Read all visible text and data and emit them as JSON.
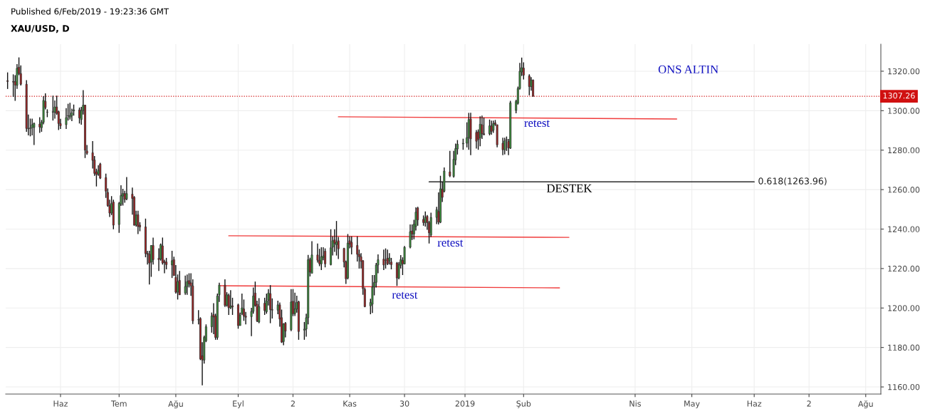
{
  "chart_data": {
    "type": "candlestick",
    "title": "XAU/USD, D",
    "subtitle": "ONS ALTIN",
    "x": [
      "2018-05-04",
      "2018-05-07",
      "2018-05-08",
      "2018-05-09",
      "2018-05-10",
      "2018-05-11",
      "2018-05-14",
      "2018-05-15",
      "2018-05-16",
      "2018-05-17",
      "2018-05-18",
      "2018-05-21",
      "2018-05-22",
      "2018-05-23",
      "2018-05-24",
      "2018-05-25",
      "2018-05-28",
      "2018-05-29",
      "2018-05-30",
      "2018-05-31",
      "2018-06-01",
      "2018-06-04",
      "2018-06-05",
      "2018-06-06",
      "2018-06-07",
      "2018-06-08",
      "2018-06-11",
      "2018-06-12",
      "2018-06-13",
      "2018-06-14",
      "2018-06-15",
      "2018-06-18",
      "2018-06-19",
      "2018-06-20",
      "2018-06-21",
      "2018-06-22",
      "2018-06-25",
      "2018-06-26",
      "2018-06-27",
      "2018-06-28",
      "2018-06-29",
      "2018-07-02",
      "2018-07-03",
      "2018-07-04",
      "2018-07-05",
      "2018-07-06",
      "2018-07-09",
      "2018-07-10",
      "2018-07-11",
      "2018-07-12",
      "2018-07-13",
      "2018-07-16",
      "2018-07-17",
      "2018-07-18",
      "2018-07-19",
      "2018-07-20",
      "2018-07-23",
      "2018-07-24",
      "2018-07-25",
      "2018-07-26",
      "2018-07-27",
      "2018-07-30",
      "2018-07-31",
      "2018-08-01",
      "2018-08-02",
      "2018-08-03",
      "2018-08-06",
      "2018-08-07",
      "2018-08-08",
      "2018-08-09",
      "2018-08-10",
      "2018-08-13",
      "2018-08-14",
      "2018-08-15",
      "2018-08-16",
      "2018-08-17",
      "2018-08-20",
      "2018-08-21",
      "2018-08-22",
      "2018-08-23",
      "2018-08-24",
      "2018-08-27",
      "2018-08-28",
      "2018-08-29",
      "2018-08-30",
      "2018-08-31",
      "2018-09-03",
      "2018-09-04",
      "2018-09-05",
      "2018-09-06",
      "2018-09-07",
      "2018-09-10",
      "2018-09-11",
      "2018-09-12",
      "2018-09-13",
      "2018-09-14",
      "2018-09-17",
      "2018-09-18",
      "2018-09-19",
      "2018-09-20",
      "2018-09-21",
      "2018-09-24",
      "2018-09-25",
      "2018-09-26",
      "2018-09-27",
      "2018-09-28",
      "2018-10-01",
      "2018-10-02",
      "2018-10-03",
      "2018-10-04",
      "2018-10-05",
      "2018-10-08",
      "2018-10-09",
      "2018-10-10",
      "2018-10-11",
      "2018-10-12",
      "2018-10-15",
      "2018-10-16",
      "2018-10-17",
      "2018-10-18",
      "2018-10-19",
      "2018-10-22",
      "2018-10-23",
      "2018-10-24",
      "2018-10-25",
      "2018-10-26",
      "2018-10-29",
      "2018-10-30",
      "2018-10-31",
      "2018-11-01",
      "2018-11-02",
      "2018-11-05",
      "2018-11-06",
      "2018-11-07",
      "2018-11-08",
      "2018-11-09",
      "2018-11-12",
      "2018-11-13",
      "2018-11-14",
      "2018-11-15",
      "2018-11-16",
      "2018-11-19",
      "2018-11-20",
      "2018-11-21",
      "2018-11-22",
      "2018-11-23",
      "2018-11-26",
      "2018-11-27",
      "2018-11-28",
      "2018-11-29",
      "2018-11-30",
      "2018-12-03",
      "2018-12-04",
      "2018-12-05",
      "2018-12-06",
      "2018-12-07",
      "2018-12-10",
      "2018-12-11",
      "2018-12-12",
      "2018-12-13",
      "2018-12-14",
      "2018-12-17",
      "2018-12-18",
      "2018-12-19",
      "2018-12-20",
      "2018-12-21",
      "2018-12-24",
      "2018-12-26",
      "2018-12-27",
      "2018-12-28",
      "2018-12-31",
      "2019-01-02",
      "2019-01-03",
      "2019-01-04",
      "2019-01-07",
      "2019-01-08",
      "2019-01-09",
      "2019-01-10",
      "2019-01-11",
      "2019-01-14",
      "2019-01-15",
      "2019-01-16",
      "2019-01-17",
      "2019-01-18",
      "2019-01-21",
      "2019-01-22",
      "2019-01-23",
      "2019-01-24",
      "2019-01-25",
      "2019-01-28",
      "2019-01-29",
      "2019-01-30",
      "2019-01-31",
      "2019-02-01",
      "2019-02-04",
      "2019-02-05",
      "2019-02-06"
    ],
    "ohlc": [
      [
        1315.2,
        1319.4,
        1311,
        1314.8
      ],
      [
        1314.8,
        1318.4,
        1307,
        1314.5
      ],
      [
        1314.8,
        1318,
        1305,
        1313
      ],
      [
        1312.8,
        1323.6,
        1311,
        1321.5
      ],
      [
        1322,
        1327,
        1318,
        1318.8
      ],
      [
        1318.8,
        1323,
        1312.8,
        1313.4
      ],
      [
        1313.4,
        1315.5,
        1289.3,
        1291
      ],
      [
        1291,
        1298,
        1287.5,
        1290.8
      ],
      [
        1291,
        1296,
        1287,
        1291.2
      ],
      [
        1291.4,
        1296,
        1287.5,
        1292.9
      ],
      [
        1291.5,
        1294,
        1282.6,
        1293.5
      ],
      [
        1293.2,
        1296.7,
        1288.7,
        1291.7
      ],
      [
        1291.4,
        1295.3,
        1289.3,
        1294.1
      ],
      [
        1294.1,
        1307.3,
        1293.1,
        1305.2
      ],
      [
        1304.7,
        1308.8,
        1300.7,
        1301.6
      ],
      [
        1299.3,
        1300.7,
        1296.7,
        1299.2
      ],
      [
        1299.2,
        1307.6,
        1295,
        1299.5
      ],
      [
        1299.2,
        1305.2,
        1296,
        1301.9
      ],
      [
        1301.9,
        1307.6,
        1297.9,
        1298.6
      ],
      [
        1299.5,
        1300,
        1290.2,
        1293.5
      ],
      [
        1293.5,
        1295.9,
        1290.7,
        1292.3
      ],
      [
        1292.9,
        1301.3,
        1290.7,
        1296.5
      ],
      [
        1297.5,
        1303.5,
        1295,
        1297.4
      ],
      [
        1296.7,
        1304,
        1295.5,
        1297.5
      ],
      [
        1297.5,
        1301,
        1294.7,
        1298.9
      ],
      [
        1299.9,
        1303.1,
        1297.5,
        1300.4
      ],
      [
        1300.4,
        1301.6,
        1293.5,
        1296.3
      ],
      [
        1295.5,
        1301.9,
        1292.9,
        1300.1
      ],
      [
        1300.1,
        1310.4,
        1298,
        1302.8
      ],
      [
        1302.8,
        1303,
        1276,
        1280
      ],
      [
        1279.6,
        1282.6,
        1277.6,
        1278.4
      ],
      [
        1278.7,
        1284.6,
        1270.7,
        1274.8
      ],
      [
        1275,
        1277,
        1267,
        1268.2
      ],
      [
        1269,
        1270.6,
        1261.6,
        1267.6
      ],
      [
        1267.8,
        1272.3,
        1267,
        1269.8
      ],
      [
        1273,
        1273.6,
        1265.4,
        1265.8
      ],
      [
        1266.1,
        1268.1,
        1255.8,
        1259.2
      ],
      [
        1258.6,
        1260.6,
        1251.3,
        1251.9
      ],
      [
        1251.9,
        1254.9,
        1246.1,
        1248.1
      ],
      [
        1248.1,
        1256.7,
        1247.1,
        1252.9
      ],
      [
        1253.7,
        1254.9,
        1239.9,
        1242
      ],
      [
        1242.3,
        1253.7,
        1238.1,
        1253.1
      ],
      [
        1252.5,
        1262.2,
        1251.7,
        1257
      ],
      [
        1256.7,
        1260.4,
        1251.9,
        1258
      ],
      [
        1258,
        1259.4,
        1253.4,
        1255
      ],
      [
        1255.3,
        1266.4,
        1254.6,
        1258
      ],
      [
        1257.7,
        1261,
        1247.3,
        1255.5
      ],
      [
        1256.1,
        1256.7,
        1241.7,
        1242
      ],
      [
        1242,
        1249.3,
        1241.3,
        1247.1
      ],
      [
        1247.3,
        1249.3,
        1237.5,
        1241.3
      ],
      [
        1242,
        1243.5,
        1238.9,
        1241.1
      ],
      [
        1241.1,
        1245.3,
        1225.7,
        1227.6
      ],
      [
        1227.8,
        1229,
        1222,
        1227.2
      ],
      [
        1227.2,
        1229,
        1211.9,
        1222.8
      ],
      [
        1223.3,
        1231.9,
        1215.8,
        1231.7
      ],
      [
        1231.7,
        1235.7,
        1222,
        1224.5
      ],
      [
        1225.2,
        1230.2,
        1218.8,
        1224.5
      ],
      [
        1224.8,
        1232.7,
        1224,
        1232.1
      ],
      [
        1231.5,
        1235.7,
        1222,
        1222.8
      ],
      [
        1223.6,
        1224.5,
        1217.6,
        1223
      ],
      [
        1223.3,
        1225.4,
        1219.6,
        1222
      ],
      [
        1221.8,
        1229,
        1215.2,
        1224
      ],
      [
        1224.5,
        1226,
        1216.4,
        1216.4
      ],
      [
        1215.5,
        1221.8,
        1207.3,
        1208
      ],
      [
        1208,
        1217,
        1204.3,
        1213.4
      ],
      [
        1214,
        1218.8,
        1206.7,
        1206.7
      ],
      [
        1207.6,
        1216.4,
        1206.7,
        1210.9
      ],
      [
        1210.9,
        1217,
        1206.7,
        1213.4
      ],
      [
        1213.9,
        1217.6,
        1210.4,
        1212.2
      ],
      [
        1212.8,
        1217.6,
        1206.1,
        1211.2
      ],
      [
        1211.2,
        1214.5,
        1191.9,
        1193.5
      ],
      [
        1194.1,
        1198.9,
        1191.7,
        1194
      ],
      [
        1194.7,
        1195.3,
        1173.6,
        1174.2
      ],
      [
        1175.8,
        1182.7,
        1160.8,
        1173.6
      ],
      [
        1173.6,
        1186,
        1171.8,
        1185.1
      ],
      [
        1183.4,
        1191.7,
        1182.7,
        1190.5
      ],
      [
        1190.5,
        1197.7,
        1187.5,
        1195.9
      ],
      [
        1196.7,
        1202.4,
        1186.7,
        1195.5
      ],
      [
        1195.9,
        1197.1,
        1183.9,
        1185.1
      ],
      [
        1185.1,
        1207.3,
        1183.9,
        1206.1
      ],
      [
        1206.7,
        1212.8,
        1203.1,
        1211.6
      ],
      [
        1211.6,
        1214.5,
        1200.5,
        1201.3
      ],
      [
        1201.3,
        1208,
        1200.7,
        1206.7
      ],
      [
        1206.4,
        1207.3,
        1196.5,
        1200.1
      ],
      [
        1200.1,
        1209,
        1199.5,
        1201
      ],
      [
        1201.1,
        1205.2,
        1196.5,
        1200.6
      ],
      [
        1201.6,
        1202.2,
        1189.5,
        1191.1
      ],
      [
        1191.1,
        1197.7,
        1191.1,
        1196.5
      ],
      [
        1197.1,
        1207.3,
        1196.5,
        1200.1
      ],
      [
        1199.5,
        1204.3,
        1193.5,
        1195.9
      ],
      [
        1195.9,
        1198,
        1191.7,
        1195.3
      ],
      [
        1195.6,
        1200.1,
        1185.7,
        1198.3
      ],
      [
        1198.3,
        1210.4,
        1197.1,
        1206.1
      ],
      [
        1207.6,
        1213.4,
        1200.7,
        1201.3
      ],
      [
        1201.9,
        1203.7,
        1192.9,
        1193.5
      ],
      [
        1192.9,
        1205,
        1192.3,
        1200.7
      ],
      [
        1202.4,
        1205.2,
        1196.5,
        1198.7
      ],
      [
        1198.1,
        1207.3,
        1197.1,
        1203.7
      ],
      [
        1204,
        1209.6,
        1201.3,
        1207.6
      ],
      [
        1207.3,
        1211.6,
        1192.3,
        1199.2
      ],
      [
        1199.2,
        1204.9,
        1194.7,
        1198.9
      ],
      [
        1198.9,
        1203.7,
        1196.8,
        1201.6
      ],
      [
        1201.6,
        1202.8,
        1190.5,
        1194.4
      ],
      [
        1195.1,
        1199.2,
        1182.3,
        1182.7
      ],
      [
        1183,
        1192.3,
        1181.1,
        1191.9
      ],
      [
        1192.3,
        1192.9,
        1185.1,
        1188.3
      ],
      [
        1189,
        1209.6,
        1188.3,
        1203.1
      ],
      [
        1203.4,
        1209.6,
        1195.9,
        1197.1
      ],
      [
        1197.1,
        1207.8,
        1195.9,
        1199.5
      ],
      [
        1199.5,
        1206.2,
        1197.7,
        1202.8
      ],
      [
        1203.1,
        1203.7,
        1183.9,
        1188.1
      ],
      [
        1188.8,
        1192.9,
        1183.9,
        1189.3
      ],
      [
        1189.3,
        1197.1,
        1185.5,
        1195.1
      ],
      [
        1195.1,
        1226.9,
        1191.7,
        1224.5
      ],
      [
        1224.5,
        1225.5,
        1216,
        1218.2
      ],
      [
        1217.6,
        1233.9,
        1217.6,
        1226.9
      ],
      [
        1226.9,
        1232.7,
        1223,
        1224.2
      ],
      [
        1224.2,
        1230,
        1221.2,
        1222.4
      ],
      [
        1222.4,
        1230.8,
        1219.2,
        1226
      ],
      [
        1225.5,
        1230.8,
        1224.2,
        1226.4
      ],
      [
        1228.8,
        1230.2,
        1220.6,
        1222.4
      ],
      [
        1222,
        1239.9,
        1221.6,
        1230.5
      ],
      [
        1230.8,
        1236.3,
        1226.6,
        1234.1
      ],
      [
        1234.5,
        1239.9,
        1228.4,
        1232.7
      ],
      [
        1232.1,
        1244.1,
        1226.6,
        1233.4
      ],
      [
        1234.1,
        1236,
        1224.8,
        1230
      ],
      [
        1230.2,
        1230.5,
        1220.6,
        1223.3
      ],
      [
        1223.3,
        1224,
        1212.2,
        1214.8
      ],
      [
        1215.2,
        1237.5,
        1214.5,
        1232.9
      ],
      [
        1234.1,
        1236.3,
        1230.2,
        1232.4
      ],
      [
        1233.3,
        1236.3,
        1227.2,
        1230.8
      ],
      [
        1231.7,
        1236.3,
        1223.6,
        1227.2
      ],
      [
        1227.2,
        1229.6,
        1220,
        1226
      ],
      [
        1226,
        1227.8,
        1220,
        1223.6
      ],
      [
        1224,
        1224.2,
        1206.7,
        1209.8
      ],
      [
        1209.5,
        1210.4,
        1200.4,
        1200.7
      ],
      [
        1201.1,
        1204.7,
        1196.8,
        1202.8
      ],
      [
        1201.9,
        1216.7,
        1197.5,
        1210.6
      ],
      [
        1210.6,
        1216.7,
        1206.4,
        1213
      ],
      [
        1213,
        1222.8,
        1210.4,
        1221.8
      ],
      [
        1221.8,
        1227.2,
        1217.6,
        1224.5
      ],
      [
        1224.8,
        1229.6,
        1219.2,
        1221.8
      ],
      [
        1224.3,
        1230.2,
        1220,
        1224.2
      ],
      [
        1225.2,
        1229.6,
        1221.8,
        1222.4
      ],
      [
        1223.9,
        1227.8,
        1222,
        1225.4
      ],
      [
        1223.3,
        1225.4,
        1219.6,
        1222
      ],
      [
        1222.8,
        1223.3,
        1211.2,
        1215.2
      ],
      [
        1215.2,
        1223.3,
        1214.5,
        1222
      ],
      [
        1221.6,
        1226.8,
        1220,
        1224.5
      ],
      [
        1224.2,
        1225.7,
        1216.7,
        1222.4
      ],
      [
        1222.3,
        1231.4,
        1222.3,
        1230.8
      ],
      [
        1230.8,
        1242.3,
        1230.2,
        1238.7
      ],
      [
        1239.1,
        1242.3,
        1234.5,
        1237.5
      ],
      [
        1237.5,
        1244.7,
        1234.8,
        1242.5
      ],
      [
        1241.3,
        1251,
        1239.3,
        1248.6
      ],
      [
        1250.7,
        1251.3,
        1241.7,
        1244.7
      ],
      [
        1244.9,
        1246.9,
        1241.7,
        1243.3
      ],
      [
        1243.3,
        1248.9,
        1241.3,
        1245.9
      ],
      [
        1246.5,
        1247.1,
        1239.6,
        1243.3
      ],
      [
        1243.3,
        1244.1,
        1232.7,
        1238.1
      ],
      [
        1237,
        1248.3,
        1236,
        1245.9
      ],
      [
        1245.9,
        1251.3,
        1242.5,
        1249.8
      ],
      [
        1248.9,
        1258.6,
        1242.3,
        1243.5
      ],
      [
        1243.5,
        1267,
        1243,
        1260.4
      ],
      [
        1260.2,
        1264,
        1253.7,
        1256.1
      ],
      [
        1259.2,
        1271.2,
        1258.6,
        1269.4
      ],
      [
        1269,
        1279.6,
        1266.4,
        1267
      ],
      [
        1266.7,
        1279.6,
        1266.1,
        1275.4
      ],
      [
        1275,
        1283.3,
        1272.4,
        1280.8
      ],
      [
        1280.6,
        1285.1,
        1277.8,
        1283
      ],
      [
        1283.2,
        1285.8,
        1280.2,
        1283.5
      ],
      [
        1283.5,
        1294.1,
        1281.4,
        1286.3
      ],
      [
        1286.3,
        1298.9,
        1280.2,
        1295.5
      ],
      [
        1295.8,
        1298.9,
        1277.5,
        1285.7
      ],
      [
        1289,
        1290.2,
        1280.8,
        1284.5
      ],
      [
        1289.3,
        1290.5,
        1280.2,
        1285.4
      ],
      [
        1286.3,
        1297.1,
        1282,
        1293.1
      ],
      [
        1292.9,
        1297.5,
        1285.7,
        1288.3
      ],
      [
        1288.3,
        1296.5,
        1287.5,
        1287.9
      ],
      [
        1288.3,
        1295.5,
        1287.5,
        1292.3
      ],
      [
        1292.3,
        1295,
        1287.8,
        1289.5
      ],
      [
        1290.1,
        1295,
        1288.7,
        1293.5
      ],
      [
        1293.8,
        1295.3,
        1292.3,
        1293.1
      ],
      [
        1292.9,
        1292.9,
        1281.4,
        1282.7
      ],
      [
        1283.5,
        1286.3,
        1277.5,
        1280.2
      ],
      [
        1280.2,
        1286.3,
        1277.8,
        1284.7
      ],
      [
        1285.3,
        1286.9,
        1279.6,
        1285.1
      ],
      [
        1284.5,
        1285.7,
        1277.5,
        1281.1
      ],
      [
        1281,
        1305,
        1280.6,
        1304
      ],
      [
        1300.1,
        1305.5,
        1298.7,
        1304.7
      ],
      [
        1303.7,
        1312.2,
        1303.1,
        1311.2
      ],
      [
        1311.2,
        1324.2,
        1310.7,
        1320
      ],
      [
        1319.6,
        1326.9,
        1317.6,
        1321.8
      ],
      [
        1321.6,
        1324.5,
        1315.8,
        1318
      ],
      [
        1317.6,
        1318.4,
        1307.8,
        1312.2
      ],
      [
        1312.2,
        1317,
        1310.1,
        1315.5
      ],
      [
        1315.5,
        1315.8,
        1307.26,
        1307.26
      ]
    ],
    "series": [
      {
        "type": "line",
        "color": "#f03c3c",
        "x": [
          "2018-10-26",
          "2019-04-23"
        ],
        "values": [
          1296.9,
          1295.8
        ]
      },
      {
        "type": "line",
        "color": "#f03c3c",
        "x": [
          "2018-08-29",
          "2019-02-25"
        ],
        "values": [
          1236.6,
          1235.8
        ]
      },
      {
        "type": "line",
        "color": "#f03c3c",
        "x": [
          "2018-08-24",
          "2019-02-20"
        ],
        "values": [
          1211.3,
          1210.2
        ]
      },
      {
        "type": "line",
        "color": "#000000",
        "name": "0.618(1263.96)",
        "x": [
          "2018-12-13",
          "2019-06-03"
        ],
        "values": [
          1263.96,
          1263.96
        ]
      }
    ],
    "ref_lines": [
      {
        "axis": "y",
        "value": 1307.26,
        "label": "1307.26",
        "color": "#d01010",
        "line_style": "dotted"
      }
    ],
    "annotations": [
      "Published 6/Feb/2019 - 19:23:36 GMT",
      "retest",
      "DESTEK",
      "retest",
      "retest"
    ],
    "xlim": [
      "2018-05-03",
      "2019-08-09"
    ],
    "xticks": [
      {
        "value": "2018-06-01",
        "label": "Haz"
      },
      {
        "value": "2018-07-02",
        "label": "Tem"
      },
      {
        "value": "2018-08-01",
        "label": "Ağu"
      },
      {
        "value": "2018-09-03",
        "label": "Eyl"
      },
      {
        "value": "2018-10-02",
        "label": "2"
      },
      {
        "value": "2018-11-01",
        "label": "Kas"
      },
      {
        "value": "2018-11-30",
        "label": "30"
      },
      {
        "value": "2019-01-01",
        "label": "2019"
      },
      {
        "value": "2019-02-01",
        "label": "Şub"
      },
      {
        "value": "2019-04-01",
        "label": "Nis"
      },
      {
        "value": "2019-05-01",
        "label": "May"
      },
      {
        "value": "2019-06-03",
        "label": "Haz"
      },
      {
        "value": "2019-07-02",
        "label": "2"
      },
      {
        "value": "2019-08-01",
        "label": "Ağu"
      }
    ],
    "ylim": [
      1156.4,
      1333.7
    ],
    "yticks": [
      {
        "value": 1160,
        "label": "1160.00"
      },
      {
        "value": 1180,
        "label": "1180.00"
      },
      {
        "value": 1200,
        "label": "1200.00"
      },
      {
        "value": 1220,
        "label": "1220.00"
      },
      {
        "value": 1240,
        "label": "1240.00"
      },
      {
        "value": 1260,
        "label": "1260.00"
      },
      {
        "value": 1280,
        "label": "1280.00"
      },
      {
        "value": 1300,
        "label": "1300.00"
      },
      {
        "value": 1320,
        "label": "1320.00"
      }
    ],
    "grid": true
  }
}
